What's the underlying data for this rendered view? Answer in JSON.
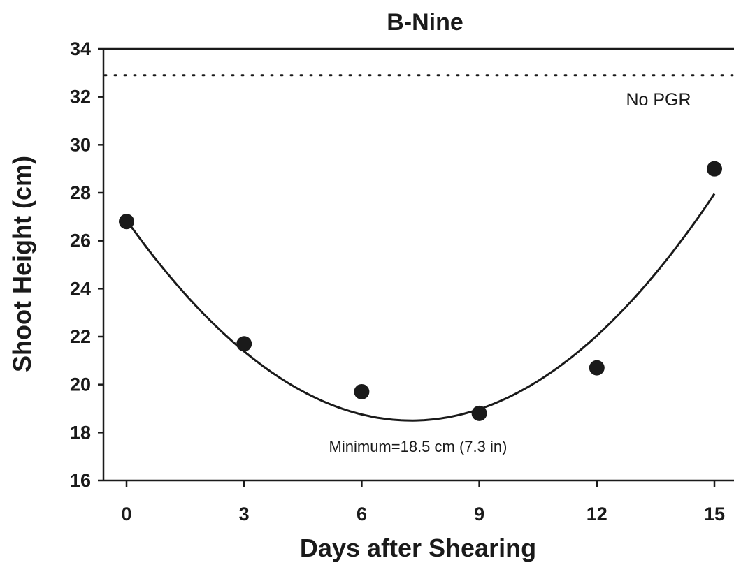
{
  "chart_data": {
    "type": "scatter",
    "title": "B-Nine",
    "xlabel": "Days after Shearing",
    "ylabel": "Shoot Height (cm)",
    "xlim": [
      -1,
      15.5
    ],
    "ylim": [
      16,
      34
    ],
    "x_ticks": [
      0,
      3,
      6,
      9,
      12,
      15
    ],
    "y_ticks": [
      16,
      18,
      20,
      22,
      24,
      26,
      28,
      30,
      32,
      34
    ],
    "grid": false,
    "series": [
      {
        "x": [
          0,
          3,
          6,
          9,
          12,
          15
        ],
        "y": [
          26.8,
          21.7,
          19.7,
          18.8,
          20.7,
          29.0
        ],
        "color": "#1a1a1a"
      }
    ],
    "fit_curve": {
      "type": "quadratic",
      "x_range": [
        0,
        15
      ],
      "minimum_x": 7.3,
      "minimum_y": 18.5,
      "coefficients": {
        "a": 0.1582,
        "b": -2.3,
        "c": 26.86
      },
      "color": "#1a1a1a"
    },
    "reference_line": {
      "y": 32.9,
      "label": "No PGR",
      "style": "dotted"
    },
    "annotations": [
      {
        "text": "Minimum=18.5 cm (7.3 in)"
      }
    ]
  }
}
